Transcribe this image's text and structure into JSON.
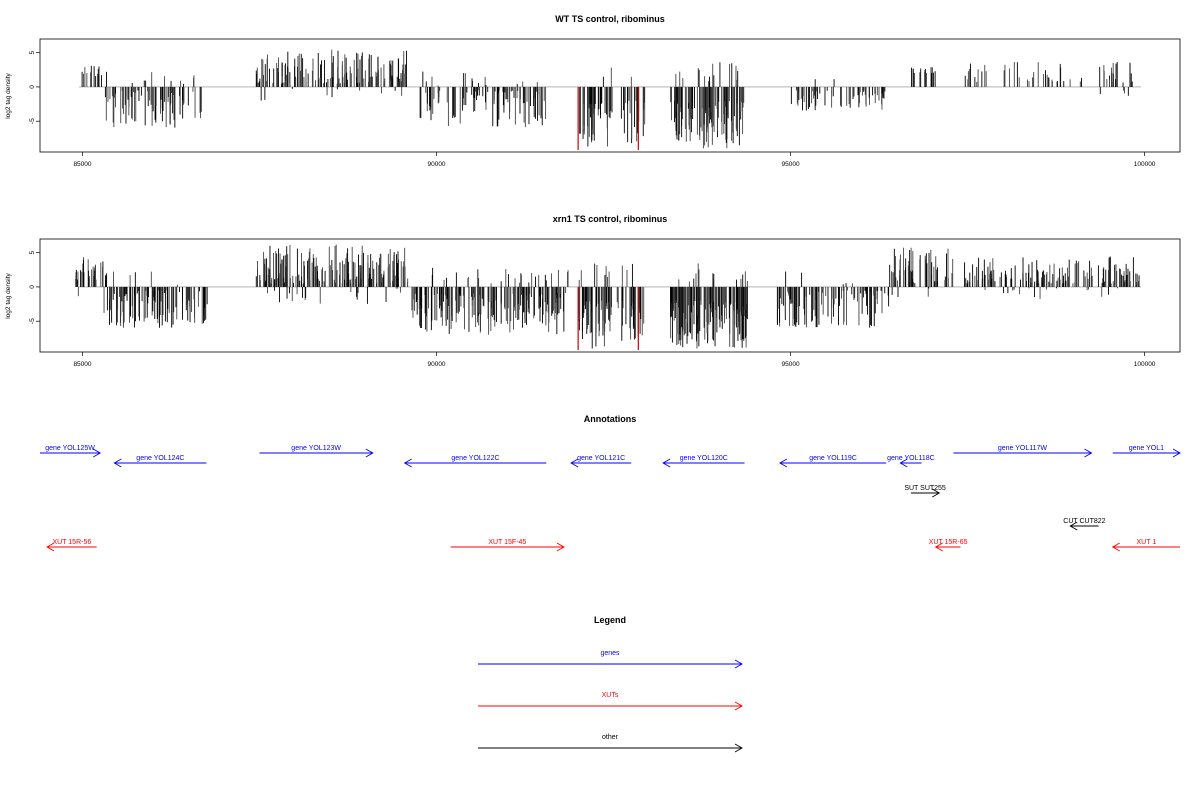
{
  "chart_data": [
    {
      "type": "bar",
      "title": "WT TS control, ribominus",
      "ylabel": "log2 tag density",
      "xlim": [
        84400,
        100500
      ],
      "ylim": [
        -9.5,
        7
      ],
      "x_ticks": [
        85000,
        90000,
        95000,
        100000
      ],
      "y_ticks": [
        -5,
        0,
        5
      ],
      "highlight_color": "#cc0000",
      "segments": [
        {
          "x0": 84950,
          "x1": 85350,
          "count": 14,
          "min": -1.5,
          "max": 3.4,
          "sign": "pos"
        },
        {
          "x0": 85300,
          "x1": 86700,
          "count": 90,
          "min": -6,
          "max": -0.5,
          "sign": "neg"
        },
        {
          "x0": 87450,
          "x1": 89600,
          "count": 150,
          "min": 0.5,
          "max": 5.5,
          "sign": "pos"
        },
        {
          "x0": 89700,
          "x1": 91550,
          "count": 110,
          "min": -6,
          "max": -0.5,
          "sign": "neg"
        },
        {
          "x0": 92000,
          "x1": 92500,
          "count": 45,
          "min": -9,
          "max": -2,
          "sign": "neg"
        },
        {
          "x0": 92600,
          "x1": 92950,
          "count": 25,
          "min": -8.5,
          "max": -2,
          "sign": "neg"
        },
        {
          "x0": 93300,
          "x1": 94350,
          "count": 120,
          "min": -9,
          "max": -2,
          "sign": "neg"
        },
        {
          "x0": 95000,
          "x1": 96350,
          "count": 60,
          "min": -3.5,
          "max": -0.5,
          "sign": "neg"
        },
        {
          "x0": 96700,
          "x1": 97050,
          "count": 16,
          "min": -2,
          "max": 3,
          "sign": "pos"
        },
        {
          "x0": 97450,
          "x1": 99900,
          "count": 60,
          "min": 0.5,
          "max": 3.8,
          "sign": "pos"
        }
      ],
      "highlights": [
        {
          "x": 92000,
          "y": -9.2
        },
        {
          "x": 92850,
          "y": -9.2
        }
      ]
    },
    {
      "type": "bar",
      "title": "xrn1 TS control, ribominus",
      "ylabel": "log2 tag density",
      "xlim": [
        84400,
        100500
      ],
      "ylim": [
        -9.5,
        7
      ],
      "x_ticks": [
        85000,
        90000,
        95000,
        100000
      ],
      "y_ticks": [
        -5,
        0,
        5
      ],
      "highlight_color": "#cc0000",
      "segments": [
        {
          "x0": 84900,
          "x1": 85350,
          "count": 30,
          "min": -1,
          "max": 4.5,
          "sign": "pos"
        },
        {
          "x0": 85300,
          "x1": 86800,
          "count": 110,
          "min": -6,
          "max": -0.5,
          "sign": "neg"
        },
        {
          "x0": 87450,
          "x1": 89600,
          "count": 200,
          "min": 0.5,
          "max": 6.2,
          "sign": "pos"
        },
        {
          "x0": 89650,
          "x1": 91800,
          "count": 190,
          "min": -7,
          "max": -1,
          "sign": "neg"
        },
        {
          "x0": 90700,
          "x1": 91900,
          "count": 14,
          "min": 0.5,
          "max": 3,
          "sign": "pos"
        },
        {
          "x0": 92000,
          "x1": 92500,
          "count": 60,
          "min": -9,
          "max": -2,
          "sign": "neg"
        },
        {
          "x0": 92550,
          "x1": 92950,
          "count": 35,
          "min": -8.5,
          "max": -2,
          "sign": "neg"
        },
        {
          "x0": 93300,
          "x1": 94400,
          "count": 160,
          "min": -9,
          "max": -2,
          "sign": "neg"
        },
        {
          "x0": 94800,
          "x1": 96400,
          "count": 100,
          "min": -6,
          "max": -0.5,
          "sign": "neg"
        },
        {
          "x0": 96400,
          "x1": 97300,
          "count": 60,
          "min": 0.5,
          "max": 5.8,
          "sign": "pos"
        },
        {
          "x0": 97450,
          "x1": 99950,
          "count": 150,
          "min": 0.5,
          "max": 4.5,
          "sign": "pos"
        }
      ],
      "highlights": [
        {
          "x": 92000,
          "y": -9.2
        },
        {
          "x": 92850,
          "y": -9.2
        }
      ]
    }
  ],
  "annotations": {
    "title": "Annotations",
    "items": [
      {
        "label": "gene YOL125W",
        "x0": 84400,
        "x1": 85250,
        "row": 0,
        "dir": "right",
        "color": "#0000ff"
      },
      {
        "label": "gene YOL124C",
        "x0": 85450,
        "x1": 86750,
        "row": 1,
        "dir": "left",
        "color": "#0000ff"
      },
      {
        "label": "gene YOL123W",
        "x0": 87500,
        "x1": 89100,
        "row": 0,
        "dir": "right",
        "color": "#0000ff"
      },
      {
        "label": "gene YOL122C",
        "x0": 89550,
        "x1": 91550,
        "row": 1,
        "dir": "left",
        "color": "#0000ff"
      },
      {
        "label": "gene YOL121C",
        "x0": 91900,
        "x1": 92750,
        "row": 1,
        "dir": "left",
        "color": "#0000ff"
      },
      {
        "label": "gene YOL120C",
        "x0": 93200,
        "x1": 94350,
        "row": 1,
        "dir": "left",
        "color": "#0000ff"
      },
      {
        "label": "gene YOL119C",
        "x0": 94850,
        "x1": 96350,
        "row": 1,
        "dir": "left",
        "color": "#0000ff"
      },
      {
        "label": "gene YOL118C",
        "x0": 96550,
        "x1": 96850,
        "row": 1,
        "dir": "left",
        "color": "#0000ff"
      },
      {
        "label": "gene YOL117W",
        "x0": 97300,
        "x1": 99250,
        "row": 0,
        "dir": "right",
        "color": "#0000ff"
      },
      {
        "label": "gene YOL1",
        "x0": 99550,
        "x1": 100500,
        "row": 0,
        "dir": "right",
        "color": "#0000ff"
      },
      {
        "label": "SUT SUT255",
        "x0": 96700,
        "x1": 97100,
        "row": 2,
        "dir": "right",
        "color": "#000000"
      },
      {
        "label": "CUT CUT822",
        "x0": 98950,
        "x1": 99350,
        "row": 3,
        "dir": "left",
        "color": "#000000"
      },
      {
        "label": "XUT 15R-56",
        "x0": 84500,
        "x1": 85200,
        "row": 4,
        "dir": "left",
        "color": "#ff0000"
      },
      {
        "label": "XUT 15F-45",
        "x0": 90200,
        "x1": 91800,
        "row": 4,
        "dir": "right",
        "color": "#ff0000"
      },
      {
        "label": "XUT 15R-65",
        "x0": 97050,
        "x1": 97400,
        "row": 4,
        "dir": "left",
        "color": "#ff0000"
      },
      {
        "label": "XUT 1",
        "x0": 99550,
        "x1": 100500,
        "row": 4,
        "dir": "left",
        "color": "#ff0000"
      }
    ]
  },
  "legend": {
    "title": "Legend",
    "items": [
      {
        "label": "genes",
        "color": "#0000ff"
      },
      {
        "label": "XUTs",
        "color": "#ff0000"
      },
      {
        "label": "other",
        "color": "#000000"
      }
    ]
  }
}
